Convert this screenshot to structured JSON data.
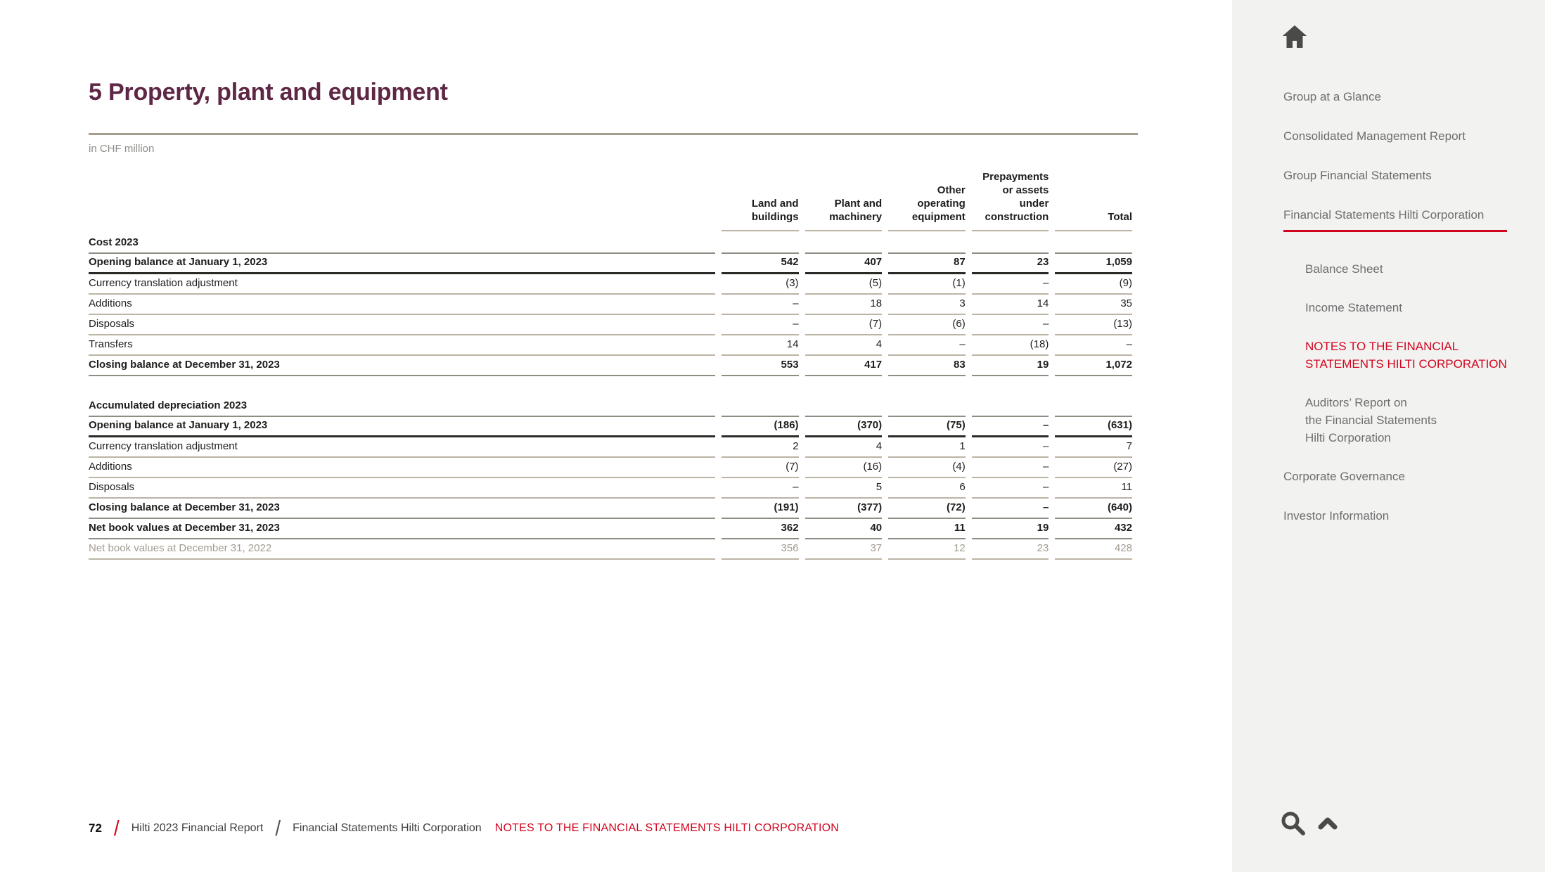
{
  "page": {
    "title": "5 Property, plant and equipment",
    "unit_note": "in CHF million"
  },
  "table": {
    "column_headers": [
      "Land and\nbuildings",
      "Plant and\nmachinery",
      "Other\noperating\nequipment",
      "Prepayments\nor assets\nunder\nconstruction",
      "Total"
    ],
    "sections": [
      {
        "title": "Cost 2023",
        "rows": [
          {
            "label": "Opening balance at January 1, 2023",
            "style": "opening",
            "values": [
              "542",
              "407",
              "87",
              "23",
              "1,059"
            ]
          },
          {
            "label": "Currency translation adjustment",
            "style": "plain",
            "values": [
              "(3)",
              "(5)",
              "(1)",
              "–",
              "(9)"
            ]
          },
          {
            "label": "Additions",
            "style": "plain",
            "values": [
              "–",
              "18",
              "3",
              "14",
              "35"
            ]
          },
          {
            "label": "Disposals",
            "style": "plain",
            "values": [
              "–",
              "(7)",
              "(6)",
              "–",
              "(13)"
            ]
          },
          {
            "label": "Transfers",
            "style": "plain",
            "values": [
              "14",
              "4",
              "–",
              "(18)",
              "–"
            ]
          },
          {
            "label": "Closing balance at December 31, 2023",
            "style": "closing",
            "values": [
              "553",
              "417",
              "83",
              "19",
              "1,072"
            ]
          }
        ]
      },
      {
        "title": "Accumulated depreciation 2023",
        "rows": [
          {
            "label": "Opening balance at January 1, 2023",
            "style": "opening",
            "values": [
              "(186)",
              "(370)",
              "(75)",
              "–",
              "(631)"
            ]
          },
          {
            "label": "Currency translation adjustment",
            "style": "plain",
            "values": [
              "2",
              "4",
              "1",
              "–",
              "7"
            ]
          },
          {
            "label": "Additions",
            "style": "plain",
            "values": [
              "(7)",
              "(16)",
              "(4)",
              "–",
              "(27)"
            ]
          },
          {
            "label": "Disposals",
            "style": "plain",
            "values": [
              "–",
              "5",
              "6",
              "–",
              "11"
            ]
          },
          {
            "label": "Closing balance at December 31, 2023",
            "style": "closing",
            "values": [
              "(191)",
              "(377)",
              "(72)",
              "–",
              "(640)"
            ]
          },
          {
            "label": "Net book values at December 31, 2023",
            "style": "netbook",
            "values": [
              "362",
              "40",
              "11",
              "19",
              "432"
            ]
          },
          {
            "label": "Net book values at December 31, 2022",
            "style": "gray",
            "values": [
              "356",
              "37",
              "12",
              "23",
              "428"
            ]
          }
        ]
      }
    ]
  },
  "sidebar": {
    "home_icon": "home-icon",
    "items": [
      {
        "label": "Group at a Glance",
        "level": "top",
        "style": "normal"
      },
      {
        "label": "Consolidated Management Report",
        "level": "top",
        "style": "normal"
      },
      {
        "label": "Group Financial Statements",
        "level": "top",
        "style": "normal"
      },
      {
        "label": "Financial Statements Hilti Corporation",
        "level": "top",
        "style": "active-underline"
      },
      {
        "label": "Balance Sheet",
        "level": "sub",
        "style": "normal"
      },
      {
        "label": "Income Statement",
        "level": "sub",
        "style": "normal"
      },
      {
        "label": "NOTES TO THE FINANCIAL\nSTATEMENTS HILTI CORPORATION",
        "level": "sub",
        "style": "current"
      },
      {
        "label": "Auditors’ Report on\nthe Financial Statements\nHilti Corporation",
        "level": "sub",
        "style": "normal"
      },
      {
        "label": "Corporate Governance",
        "level": "top",
        "style": "normal",
        "section_break_before": true
      },
      {
        "label": "Investor Information",
        "level": "top",
        "style": "normal"
      }
    ],
    "tool_icons": [
      "search-icon",
      "collapse-up-icon"
    ]
  },
  "footer": {
    "page_number": "72",
    "breadcrumbs": [
      {
        "label": "Hilti 2023 Financial Report",
        "style": "normal",
        "separator_before": "red-slash"
      },
      {
        "label": "Financial Statements Hilti Corporation",
        "style": "normal",
        "separator_before": "gray-slash"
      },
      {
        "label": "NOTES TO THE FINANCIAL STATEMENTS HILTI CORPORATION",
        "style": "current",
        "separator_before": "none"
      }
    ]
  },
  "colors": {
    "accent_red": "#d2051e",
    "title_maroon": "#5e2745",
    "sidebar_bg": "#f2f2f1",
    "rule_tan": "#a69d8e",
    "table_border_light": "#bcb4a5",
    "table_border_medium": "#8f8c83",
    "table_border_dark": "#2b2a26",
    "table_text": "#1d1d1b",
    "table_text_gray": "#a29c90",
    "nav_text_gray": "#6e6e6e",
    "icon_gray": "#4a4a49"
  }
}
